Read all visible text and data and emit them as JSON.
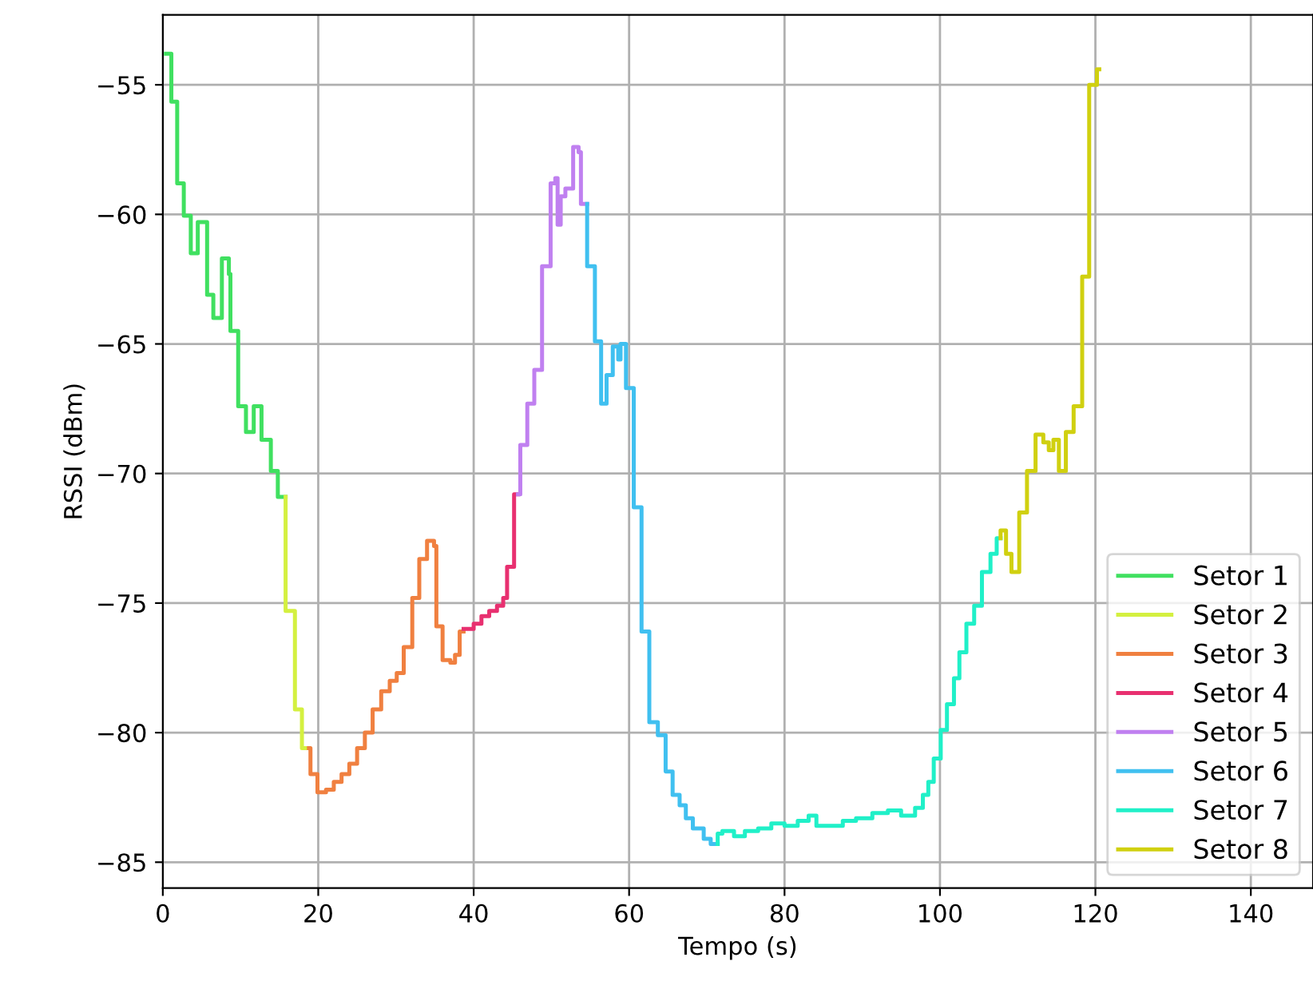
{
  "chart_data": {
    "type": "step",
    "xlabel": "Tempo (s)",
    "ylabel": "RSSI (dBm)",
    "xlim": [
      0,
      148
    ],
    "ylim": [
      -86,
      -52.3
    ],
    "xticks": [
      0,
      20,
      40,
      60,
      80,
      100,
      120,
      140
    ],
    "yticks": [
      -55,
      -60,
      -65,
      -70,
      -75,
      -80,
      -85
    ],
    "grid": true,
    "legend": "bottom right",
    "line_style": "solid",
    "series": [
      {
        "name": "Setor 1",
        "color": "#40e060",
        "x": [
          0.4,
          1.1,
          1.85,
          2.7,
          3.6,
          4.5,
          5.7,
          6.5,
          7.6,
          8.5,
          8.7,
          9.7,
          10.7,
          11.7,
          12.7,
          13.9,
          14.8,
          15.8
        ],
        "values": [
          -53.8,
          -55.65,
          -58.8,
          -60.05,
          -61.5,
          -60.3,
          -63.1,
          -64.0,
          -61.7,
          -62.3,
          -64.5,
          -67.4,
          -68.4,
          -67.4,
          -68.7,
          -69.9,
          -70.9,
          -70.9
        ]
      },
      {
        "name": "Setor 2",
        "color": "#d4f040",
        "x": [
          15.8,
          15.8,
          17.0,
          17.9,
          18.8
        ],
        "values": [
          -70.9,
          -75.3,
          -79.1,
          -80.6,
          -80.6
        ]
      },
      {
        "name": "Setor 3",
        "color": "#f08040",
        "x": [
          18.8,
          19.0,
          19.9,
          21,
          22,
          23,
          24,
          25,
          26,
          27,
          28.1,
          29.2,
          30.1,
          31.0,
          32.1,
          33.0,
          34,
          34.9,
          35.2,
          36,
          37,
          37.6,
          38.2,
          38.7
        ],
        "values": [
          -80.6,
          -81.6,
          -82.3,
          -82.2,
          -81.9,
          -81.6,
          -81.2,
          -80.6,
          -80.0,
          -79.1,
          -78.4,
          -78.0,
          -77.7,
          -76.7,
          -74.8,
          -73.3,
          -72.6,
          -72.8,
          -75.9,
          -77.2,
          -77.3,
          -77.0,
          -76.1,
          -76.1
        ]
      },
      {
        "name": "Setor 4",
        "color": "#e83070",
        "x": [
          38.7,
          40,
          41,
          42,
          43,
          43.8,
          44.3,
          45.2,
          45.7
        ],
        "values": [
          -76.0,
          -75.8,
          -75.5,
          -75.3,
          -75.1,
          -74.8,
          -73.6,
          -70.8,
          -70.8
        ]
      },
      {
        "name": "Setor 5",
        "color": "#c080f0",
        "x": [
          45.7,
          46,
          46.9,
          47.8,
          48.8,
          49.9,
          50.5,
          50.8,
          51.2,
          51.8,
          52.8,
          53.5,
          53.8,
          54.6
        ],
        "values": [
          -70.8,
          -68.9,
          -67.3,
          -66.0,
          -62.0,
          -58.8,
          -58.6,
          -60.4,
          -59.3,
          -59.0,
          -57.4,
          -57.6,
          -59.6,
          -59.6
        ]
      },
      {
        "name": "Setor 6",
        "color": "#40c0f0",
        "x": [
          54.6,
          54.6,
          55.6,
          56.4,
          57.1,
          57.9,
          58.6,
          58.9,
          59.6,
          60.6,
          61.6,
          62.6,
          63.7,
          64.7,
          65.6,
          66.5,
          67.3,
          68.2,
          69.6,
          70.5,
          71.4
        ],
        "values": [
          -59.6,
          -62.0,
          -64.9,
          -67.3,
          -66.2,
          -65.1,
          -65.6,
          -65.0,
          -66.7,
          -71.3,
          -76.1,
          -79.6,
          -80.1,
          -81.5,
          -82.4,
          -82.8,
          -83.3,
          -83.7,
          -84.1,
          -84.3,
          -84.3
        ]
      },
      {
        "name": "Setor 7",
        "color": "#20f0c8",
        "x": [
          71.4,
          71.4,
          72,
          73.5,
          74.9,
          76.6,
          78.3,
          80,
          81.7,
          83.1,
          84.1,
          85.8,
          87.5,
          89.2,
          91.3,
          93.3,
          95,
          96.8,
          97.8,
          98.5,
          99.2,
          100.1,
          100.9,
          101.8,
          102.5,
          103.4,
          104.4,
          105.4,
          106.5,
          107.3,
          107.8
        ],
        "values": [
          -84.3,
          -83.9,
          -83.8,
          -84.0,
          -83.8,
          -83.7,
          -83.5,
          -83.6,
          -83.4,
          -83.2,
          -83.6,
          -83.6,
          -83.4,
          -83.3,
          -83.1,
          -83.0,
          -83.2,
          -82.9,
          -82.4,
          -81.9,
          -81.0,
          -79.9,
          -78.9,
          -77.9,
          -76.9,
          -75.8,
          -75.1,
          -73.8,
          -73.1,
          -72.5,
          -72.5
        ]
      },
      {
        "name": "Setor 8",
        "color": "#d0d010",
        "x": [
          107.8,
          107.8,
          108.5,
          109.2,
          110.2,
          111.2,
          112.3,
          113.3,
          114,
          114.6,
          115.3,
          116.2,
          117.2,
          118.3,
          119.2,
          120.2,
          120.5
        ],
        "values": [
          -72.5,
          -72.2,
          -73.1,
          -73.8,
          -71.5,
          -69.9,
          -68.5,
          -68.8,
          -69.1,
          -68.7,
          -69.9,
          -68.4,
          -67.4,
          -62.4,
          -55.0,
          -54.4,
          -54.4
        ]
      }
    ]
  }
}
